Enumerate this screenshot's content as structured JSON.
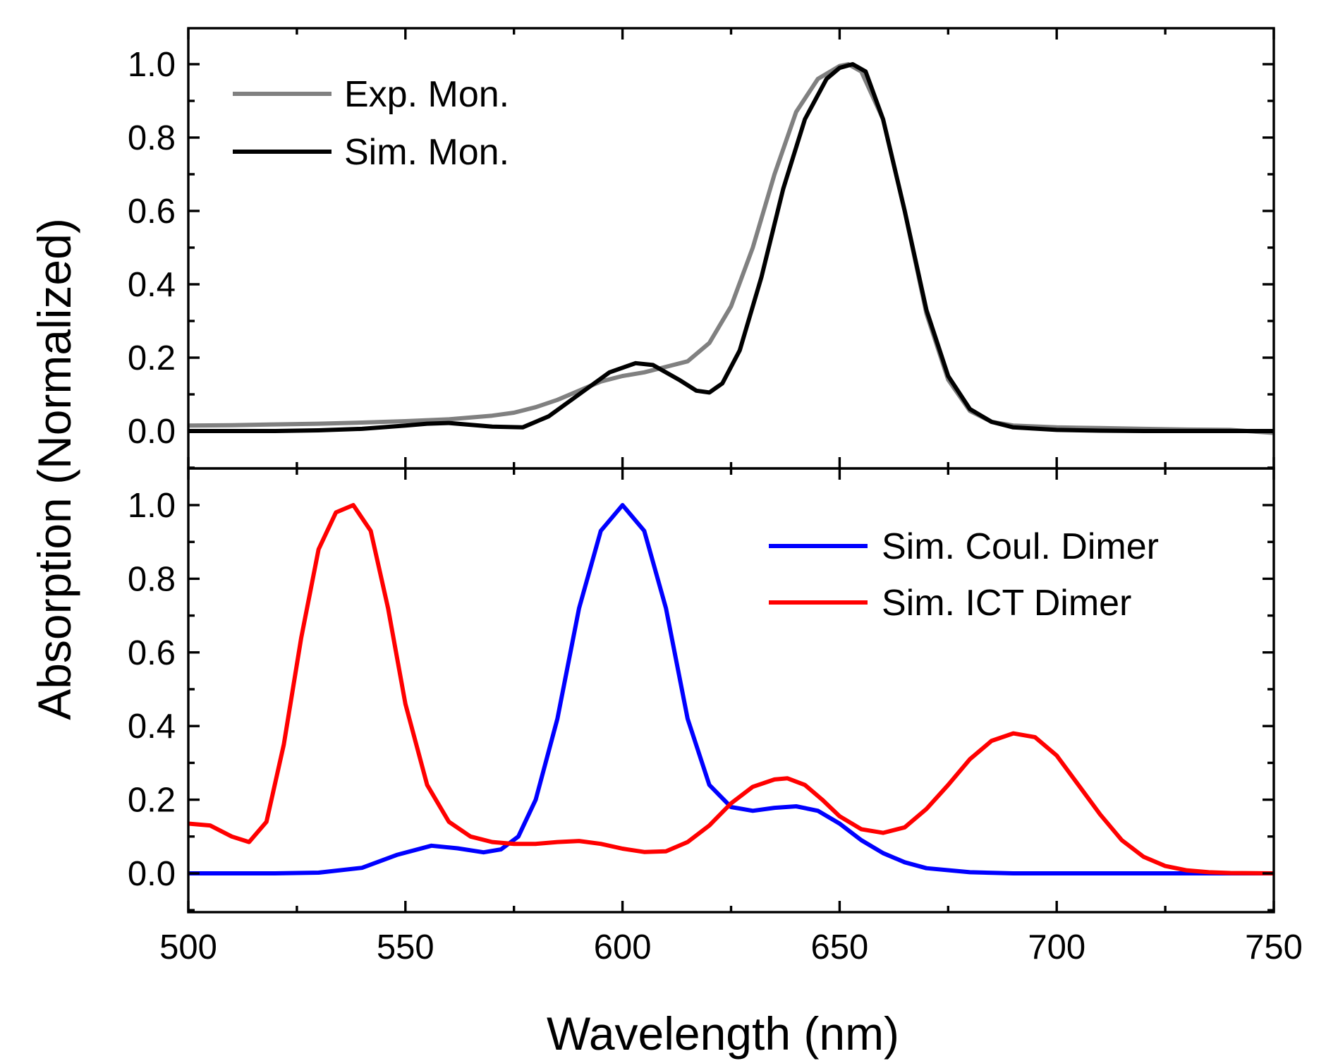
{
  "chart_data": {
    "type": "line",
    "xlabel": "Wavelength (nm)",
    "ylabel": "Absorption (Normalized)",
    "xlim": [
      500,
      750
    ],
    "x_ticks": [
      "500",
      "550",
      "600",
      "650",
      "700",
      "750"
    ],
    "y_ticks": [
      "0.0",
      "0.2",
      "0.4",
      "0.6",
      "0.8",
      "1.0"
    ],
    "grid": false,
    "panels": [
      {
        "ylim": [
          -0.02,
          1.1
        ],
        "legend_position": "top-left",
        "series": [
          {
            "name": "Exp. Mon.",
            "color": "#808080",
            "x": [
              500,
              510,
              520,
              530,
              540,
              550,
              560,
              570,
              575,
              580,
              585,
              590,
              595,
              600,
              605,
              610,
              615,
              620,
              625,
              630,
              635,
              640,
              645,
              650,
              652,
              655,
              660,
              665,
              670,
              675,
              680,
              685,
              690,
              700,
              710,
              720,
              730,
              740,
              750
            ],
            "y": [
              0.015,
              0.016,
              0.018,
              0.02,
              0.023,
              0.027,
              0.032,
              0.042,
              0.05,
              0.065,
              0.085,
              0.11,
              0.135,
              0.15,
              0.16,
              0.175,
              0.19,
              0.24,
              0.34,
              0.5,
              0.7,
              0.87,
              0.96,
              0.995,
              1.0,
              0.98,
              0.85,
              0.6,
              0.32,
              0.14,
              0.055,
              0.025,
              0.015,
              0.01,
              0.008,
              0.006,
              0.004,
              0.003,
              -0.005
            ]
          },
          {
            "name": "Sim. Mon.",
            "color": "#000000",
            "x": [
              500,
              510,
              520,
              530,
              540,
              550,
              555,
              560,
              570,
              577,
              583,
              590,
              597,
              603,
              607,
              613,
              617,
              620,
              623,
              627,
              632,
              637,
              642,
              647,
              650,
              653,
              656,
              660,
              665,
              670,
              675,
              680,
              685,
              690,
              700,
              710,
              720,
              730,
              740,
              750
            ],
            "y": [
              0.0,
              0.0,
              0.0,
              0.002,
              0.006,
              0.015,
              0.02,
              0.022,
              0.012,
              0.01,
              0.04,
              0.1,
              0.16,
              0.185,
              0.18,
              0.14,
              0.11,
              0.105,
              0.13,
              0.22,
              0.42,
              0.66,
              0.85,
              0.96,
              0.99,
              1.0,
              0.98,
              0.85,
              0.6,
              0.33,
              0.15,
              0.06,
              0.025,
              0.01,
              0.003,
              0.001,
              0.0,
              0.0,
              0.0,
              0.0
            ]
          }
        ]
      },
      {
        "ylim": [
          -0.1,
          1.1
        ],
        "legend_position": "top-right",
        "series": [
          {
            "name": "Sim. Coul. Dimer",
            "color": "#0000FF",
            "x": [
              500,
              520,
              530,
              540,
              548,
              556,
              562,
              568,
              572,
              576,
              580,
              585,
              590,
              595,
              600,
              605,
              610,
              615,
              620,
              625,
              630,
              635,
              640,
              645,
              650,
              655,
              660,
              665,
              670,
              680,
              690,
              700,
              750
            ],
            "y": [
              0.0,
              0.0,
              0.002,
              0.015,
              0.05,
              0.075,
              0.068,
              0.057,
              0.065,
              0.1,
              0.2,
              0.42,
              0.72,
              0.93,
              1.0,
              0.93,
              0.72,
              0.42,
              0.24,
              0.18,
              0.17,
              0.178,
              0.182,
              0.17,
              0.135,
              0.09,
              0.055,
              0.03,
              0.014,
              0.003,
              0.0,
              0.0,
              0.0
            ]
          },
          {
            "name": "Sim. ICT Dimer",
            "color": "#FF0000",
            "x": [
              500,
              505,
              510,
              514,
              518,
              522,
              526,
              530,
              534,
              538,
              542,
              546,
              550,
              555,
              560,
              565,
              570,
              575,
              580,
              585,
              590,
              595,
              600,
              605,
              610,
              615,
              620,
              625,
              630,
              635,
              638,
              642,
              646,
              650,
              655,
              660,
              665,
              670,
              675,
              680,
              685,
              690,
              695,
              700,
              705,
              710,
              715,
              720,
              725,
              730,
              735,
              740,
              750
            ],
            "y": [
              0.135,
              0.13,
              0.1,
              0.085,
              0.14,
              0.35,
              0.64,
              0.88,
              0.98,
              1.0,
              0.93,
              0.72,
              0.46,
              0.24,
              0.14,
              0.1,
              0.085,
              0.08,
              0.08,
              0.085,
              0.088,
              0.08,
              0.067,
              0.058,
              0.06,
              0.085,
              0.13,
              0.19,
              0.235,
              0.255,
              0.258,
              0.24,
              0.2,
              0.155,
              0.12,
              0.11,
              0.125,
              0.175,
              0.24,
              0.31,
              0.36,
              0.38,
              0.37,
              0.32,
              0.24,
              0.16,
              0.09,
              0.045,
              0.02,
              0.008,
              0.003,
              0.001,
              0.0
            ]
          }
        ]
      }
    ]
  }
}
